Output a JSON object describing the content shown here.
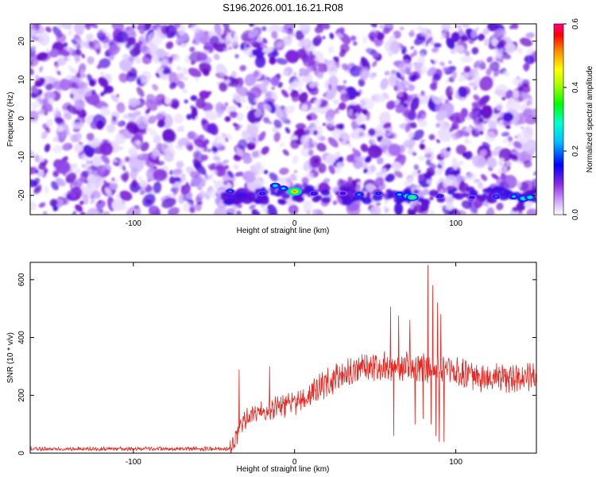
{
  "title": "S196.2026.001.16.21.R08",
  "chart_data": [
    {
      "type": "heatmap",
      "title": "S196.2026.001.16.21.R08",
      "xlabel": "Height of straight line (km)",
      "ylabel": "Frequency (Hz)",
      "xlim": [
        -164,
        150
      ],
      "ylim": [
        -25,
        24.5
      ],
      "xticks": [
        -100,
        0,
        100
      ],
      "xtick_labels": [
        "-100",
        "0",
        "100"
      ],
      "yticks": [
        -20,
        -10,
        0,
        10,
        20
      ],
      "ytick_labels": [
        "-20",
        "-10",
        "0",
        "10",
        "20"
      ],
      "colorbar": {
        "label": "Normalized spectral amplitude",
        "range": [
          0,
          0.6
        ],
        "ticks": [
          0,
          0.2,
          0.4,
          0.6
        ],
        "tick_labels": [
          "0.0",
          "0.2",
          "0.4",
          "0.6"
        ],
        "colormap": [
          "#ffffff",
          "#7a00cc",
          "#0000ff",
          "#00ffff",
          "#00ff00",
          "#ffff00",
          "#ff8800",
          "#ff0000",
          "#ff0088"
        ]
      },
      "features": [
        {
          "x": -40,
          "y": -19,
          "value": 0.22
        },
        {
          "x": -20,
          "y": -19.5,
          "value": 0.2
        },
        {
          "x": -12,
          "y": -17.5,
          "value": 0.28
        },
        {
          "x": -7,
          "y": -18.2,
          "value": 0.26
        },
        {
          "x": 0,
          "y": -19,
          "value": 0.52
        },
        {
          "x": 12,
          "y": -19.5,
          "value": 0.2
        },
        {
          "x": 30,
          "y": -19.5,
          "value": 0.18
        },
        {
          "x": 40,
          "y": -19.8,
          "value": 0.24
        },
        {
          "x": 52,
          "y": -19.5,
          "value": 0.2
        },
        {
          "x": 65,
          "y": -19.8,
          "value": 0.26
        },
        {
          "x": 70,
          "y": -20.2,
          "value": 0.33
        },
        {
          "x": 73,
          "y": -20.5,
          "value": 0.38
        },
        {
          "x": 90,
          "y": -20.2,
          "value": 0.2
        },
        {
          "x": 110,
          "y": -20.5,
          "value": 0.18
        },
        {
          "x": 125,
          "y": -20.3,
          "value": 0.22
        },
        {
          "x": 136,
          "y": -20.3,
          "value": 0.26
        },
        {
          "x": 142,
          "y": -20.8,
          "value": 0.32
        },
        {
          "x": 146,
          "y": -20.5,
          "value": 0.3
        }
      ]
    },
    {
      "type": "line",
      "xlabel": "Height of straight line (km)",
      "ylabel": "SNR (10 * v/v)",
      "xlim": [
        -164,
        150
      ],
      "ylim": [
        0,
        660
      ],
      "xticks": [
        -100,
        0,
        100
      ],
      "xtick_labels": [
        "-100",
        "0",
        "100"
      ],
      "yticks": [
        0,
        200,
        400,
        600
      ],
      "ytick_labels": [
        "0",
        "200",
        "400",
        "600"
      ],
      "color": "#e8251f",
      "envelope": {
        "x": [
          -164,
          -40,
          -37,
          -34,
          -30,
          -25,
          -20,
          -10,
          0,
          10,
          20,
          30,
          40,
          50,
          60,
          70,
          80,
          90,
          100,
          110,
          120,
          130,
          140,
          150
        ],
        "y": [
          15,
          15,
          40,
          90,
          120,
          135,
          145,
          160,
          175,
          210,
          245,
          270,
          295,
          300,
          300,
          300,
          295,
          285,
          280,
          265,
          260,
          260,
          258,
          262
        ]
      },
      "noise_amplitude": 40,
      "spikes": [
        {
          "x": -34,
          "y": 288
        },
        {
          "x": -15,
          "y": 300
        },
        {
          "x": 60,
          "y": 505
        },
        {
          "x": 62,
          "y": 60
        },
        {
          "x": 65,
          "y": 475
        },
        {
          "x": 72,
          "y": 460
        },
        {
          "x": 75,
          "y": 100
        },
        {
          "x": 80,
          "y": 120
        },
        {
          "x": 83,
          "y": 650
        },
        {
          "x": 85,
          "y": 100
        },
        {
          "x": 86,
          "y": 580
        },
        {
          "x": 88,
          "y": 60
        },
        {
          "x": 89,
          "y": 520
        },
        {
          "x": 90,
          "y": 40
        },
        {
          "x": 91,
          "y": 480
        },
        {
          "x": 93,
          "y": 40
        }
      ]
    }
  ]
}
